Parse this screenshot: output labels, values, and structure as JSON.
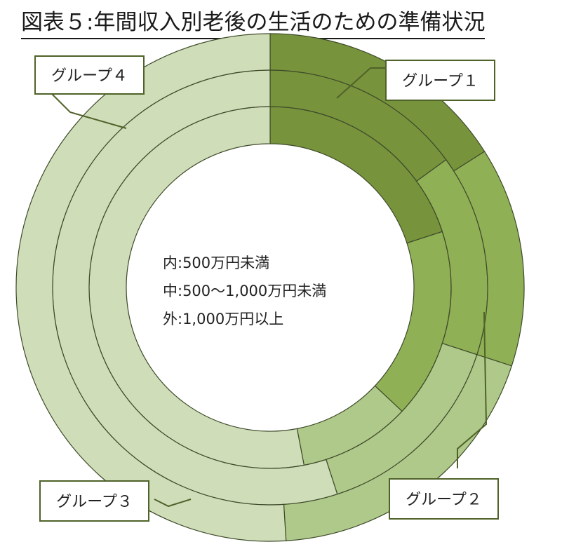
{
  "title": "図表５:年間収入別老後の生活のための準備状況",
  "chart_data": {
    "type": "donut",
    "title": "図表５:年間収入別老後の生活のための準備状況",
    "ring_order": [
      "inner",
      "middle",
      "outer"
    ],
    "categories": [
      "グループ１",
      "グループ２",
      "グループ３",
      "グループ４"
    ],
    "series": [
      {
        "name": "内:500万円未満",
        "values": [
          20,
          17,
          10,
          53
        ]
      },
      {
        "name": "中:500～1,000万円未満",
        "values": [
          15,
          15,
          15,
          55
        ]
      },
      {
        "name": "外:1,000万円以上",
        "values": [
          16,
          14,
          19,
          51
        ]
      }
    ],
    "center_labels": [
      "内:500万円未満",
      "中:500～1,000万円未満",
      "外:1,000万円以上"
    ],
    "colors": [
      "#77933c",
      "#8fb055",
      "#afc98a",
      "#cfddb9"
    ],
    "start_angle": "12 o'clock",
    "direction": "clockwise",
    "legend": "callout boxes around the rings"
  }
}
